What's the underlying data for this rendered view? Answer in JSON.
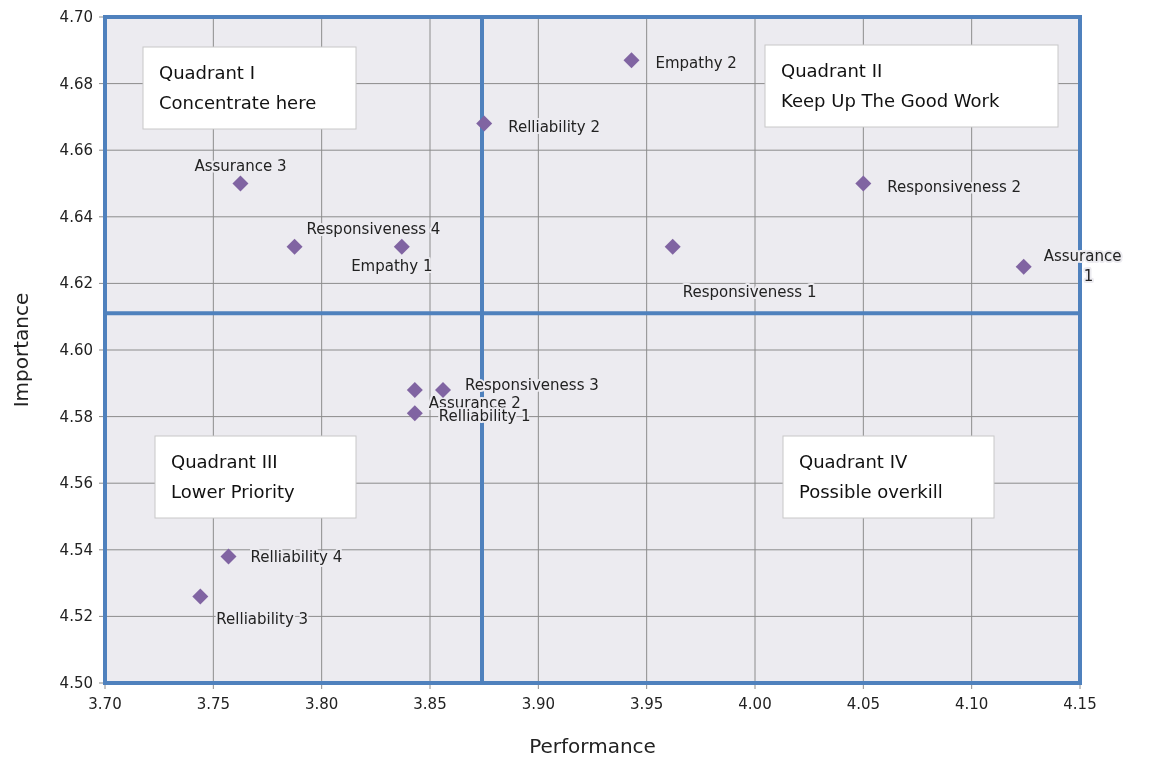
{
  "chart_data": {
    "type": "scatter",
    "xlabel": "Performance",
    "ylabel": "Importance",
    "series": [
      {
        "color": "#8064a2",
        "x": [
          3.943,
          3.875,
          3.7625,
          3.7875,
          3.837,
          3.962,
          4.05,
          4.124,
          3.843,
          3.856,
          3.843,
          3.757,
          3.744
        ],
        "values": [
          4.687,
          4.668,
          4.65,
          4.631,
          4.631,
          4.631,
          4.65,
          4.625,
          4.588,
          4.588,
          4.581,
          4.538,
          4.526
        ]
      }
    ],
    "marker": "diamond",
    "grid": true,
    "xlim": [
      3.7,
      4.15
    ],
    "xticks": [
      {
        "value": 3.7,
        "label": "3.70"
      },
      3.75,
      {
        "value": 3.8,
        "label": "3.80"
      },
      3.85,
      {
        "value": 3.9,
        "label": "3.90"
      },
      3.95,
      {
        "value": 4.0,
        "label": "4.00"
      },
      4.05,
      {
        "value": 4.1,
        "label": "4.10"
      },
      4.15
    ],
    "ylim": [
      4.5,
      4.7
    ],
    "yticks": [
      {
        "value": 4.5,
        "label": "4.50"
      },
      4.52,
      4.54,
      4.56,
      4.58,
      {
        "value": 4.6,
        "label": "4.60"
      },
      4.62,
      4.64,
      4.66,
      4.68,
      {
        "value": 4.7,
        "label": "4.70"
      }
    ],
    "ref_lines": [
      {
        "axis": "x",
        "value": 3.874,
        "color": "#4f81bd"
      },
      {
        "axis": "y",
        "value": 4.611,
        "color": "#4f81bd"
      }
    ],
    "annotations": [
      {
        "text": "Empathy 2",
        "x": 3.943,
        "y": 4.687
      },
      {
        "text": "Relliability 2",
        "x": 3.875,
        "y": 4.668
      },
      {
        "text": "Assurance 3",
        "x": 3.7625,
        "y": 4.65
      },
      {
        "text": "Responsiveness 4",
        "x": 3.7875,
        "y": 4.631
      },
      {
        "text": "Empathy 1",
        "x": 3.837,
        "y": 4.631
      },
      {
        "text": "Responsiveness 1",
        "x": 3.962,
        "y": 4.631
      },
      {
        "text": "Responsiveness 2",
        "x": 4.05,
        "y": 4.65
      },
      {
        "text": "Assurance 1",
        "x": 4.124,
        "y": 4.625
      },
      {
        "text": "Assurance 2",
        "x": 3.843,
        "y": 4.588
      },
      {
        "text": "Responsiveness 3",
        "x": 3.856,
        "y": 4.588
      },
      {
        "text": "Relliability 1",
        "x": 3.843,
        "y": 4.581
      },
      {
        "text": "Relliability 4",
        "x": 3.757,
        "y": 4.538
      },
      {
        "text": "Relliability 3",
        "x": 3.744,
        "y": 4.526
      },
      "Quadrant I\nConcentrate here",
      "Quadrant II\nKeep Up The Good Work",
      "Quadrant III\nLower Priority",
      "Quadrant IV\nPossible overkill"
    ]
  }
}
